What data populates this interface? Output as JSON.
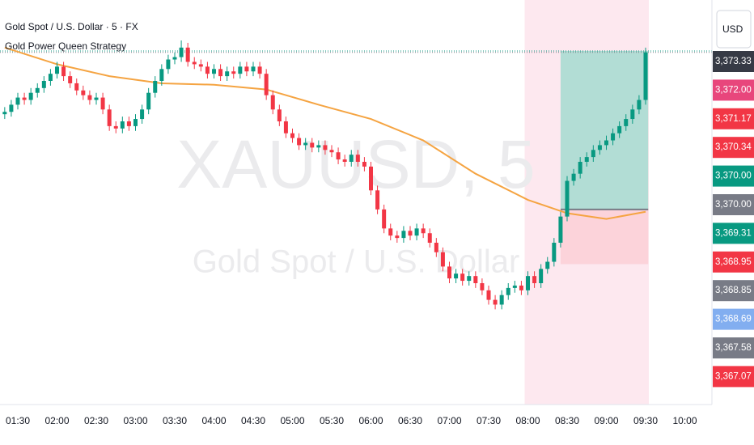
{
  "chart_data": {
    "type": "candlestick",
    "title": "Gold Spot / U.S. Dollar · 5 · FX",
    "subtitle": "Gold Power Queen Strategy",
    "watermark": "XAUUSD, 5",
    "watermark_subtitle": "Gold Spot / U.S. Dollar",
    "currency_button": "USD",
    "up_color": "#089981",
    "down_color": "#f23645",
    "ylim": [
      3365.9,
      3374.4
    ],
    "xticks": [
      "01:30",
      "02:00",
      "02:30",
      "03:00",
      "03:30",
      "04:00",
      "04:30",
      "05:00",
      "05:30",
      "06:00",
      "06:30",
      "07:00",
      "07:30",
      "08:00",
      "08:30",
      "09:00",
      "09:30",
      "10:00"
    ],
    "x": [
      "01:20",
      "01:25",
      "01:30",
      "01:35",
      "01:40",
      "01:45",
      "01:50",
      "01:55",
      "02:00",
      "02:05",
      "02:10",
      "02:15",
      "02:20",
      "02:25",
      "02:30",
      "02:35",
      "02:40",
      "02:45",
      "02:50",
      "02:55",
      "03:00",
      "03:05",
      "03:10",
      "03:15",
      "03:20",
      "03:25",
      "03:30",
      "03:35",
      "03:40",
      "03:45",
      "03:50",
      "03:55",
      "04:00",
      "04:05",
      "04:10",
      "04:15",
      "04:20",
      "04:25",
      "04:30",
      "04:35",
      "04:40",
      "04:45",
      "04:50",
      "04:55",
      "05:00",
      "05:05",
      "05:10",
      "05:15",
      "05:20",
      "05:25",
      "05:30",
      "05:35",
      "05:40",
      "05:45",
      "05:50",
      "05:55",
      "06:00",
      "06:05",
      "06:10",
      "06:15",
      "06:20",
      "06:25",
      "06:30",
      "06:35",
      "06:40",
      "06:45",
      "06:50",
      "06:55",
      "07:00",
      "07:05",
      "07:10",
      "07:15",
      "07:20",
      "07:25",
      "07:30",
      "07:35",
      "07:40",
      "07:45",
      "07:50",
      "07:55",
      "08:00",
      "08:05",
      "08:10",
      "08:15",
      "08:20",
      "08:25",
      "08:30",
      "08:35",
      "08:40",
      "08:45",
      "08:50",
      "08:55",
      "09:00",
      "09:05",
      "09:10",
      "09:15",
      "09:20",
      "09:25",
      "09:30"
    ],
    "open": [
      3372.0,
      3372.05,
      3372.2,
      3372.35,
      3372.3,
      3372.45,
      3372.55,
      3372.7,
      3372.85,
      3373.0,
      3372.8,
      3372.65,
      3372.5,
      3372.4,
      3372.3,
      3372.35,
      3372.1,
      3371.75,
      3371.7,
      3371.85,
      3371.75,
      3371.9,
      3372.1,
      3372.45,
      3372.7,
      3372.95,
      3373.15,
      3373.2,
      3373.4,
      3373.1,
      3373.05,
      3373.0,
      3372.85,
      3372.95,
      3372.8,
      3372.9,
      3372.85,
      3373.0,
      3372.9,
      3373.0,
      3372.85,
      3372.4,
      3372.1,
      3371.85,
      3371.6,
      3371.5,
      3371.35,
      3371.4,
      3371.3,
      3371.35,
      3371.25,
      3371.2,
      3371.05,
      3371.0,
      3371.15,
      3371.0,
      3370.9,
      3370.4,
      3370.0,
      3369.6,
      3369.45,
      3369.4,
      3369.55,
      3369.45,
      3369.6,
      3369.5,
      3369.3,
      3369.1,
      3368.8,
      3368.55,
      3368.65,
      3368.5,
      3368.6,
      3368.45,
      3368.3,
      3368.1,
      3368.0,
      3368.2,
      3368.35,
      3368.4,
      3368.3,
      3368.6,
      3368.45,
      3368.75,
      3368.9,
      3369.3,
      3369.85,
      3370.6,
      3370.75,
      3371.0,
      3371.1,
      3371.25,
      3371.35,
      3371.45,
      3371.6,
      3371.75,
      3371.9,
      3372.1,
      3372.3
    ],
    "high": [
      3372.15,
      3372.3,
      3372.45,
      3372.45,
      3372.55,
      3372.65,
      3372.8,
      3372.95,
      3373.1,
      3373.1,
      3372.9,
      3372.75,
      3372.6,
      3372.5,
      3372.45,
      3372.45,
      3372.2,
      3371.85,
      3371.95,
      3371.95,
      3372.0,
      3372.2,
      3372.55,
      3372.8,
      3373.05,
      3373.25,
      3373.3,
      3373.55,
      3373.5,
      3373.2,
      3373.15,
      3373.1,
      3373.05,
      3373.05,
      3373.0,
      3373.0,
      3373.1,
      3373.1,
      3373.1,
      3373.1,
      3372.95,
      3372.5,
      3372.2,
      3371.95,
      3371.7,
      3371.6,
      3371.5,
      3371.5,
      3371.45,
      3371.45,
      3371.35,
      3371.3,
      3371.15,
      3371.25,
      3371.25,
      3371.1,
      3371.0,
      3370.5,
      3370.1,
      3369.7,
      3369.55,
      3369.65,
      3369.65,
      3369.7,
      3369.7,
      3369.6,
      3369.4,
      3369.2,
      3368.9,
      3368.75,
      3368.75,
      3368.7,
      3368.7,
      3368.55,
      3368.4,
      3368.2,
      3368.3,
      3368.45,
      3368.5,
      3368.5,
      3368.7,
      3368.7,
      3368.85,
      3369.0,
      3369.4,
      3369.95,
      3370.7,
      3370.85,
      3371.1,
      3371.2,
      3371.35,
      3371.45,
      3371.55,
      3371.7,
      3371.85,
      3372.0,
      3372.2,
      3372.4,
      3373.4
    ],
    "low": [
      3371.9,
      3371.95,
      3372.1,
      3372.2,
      3372.2,
      3372.35,
      3372.45,
      3372.6,
      3372.75,
      3372.7,
      3372.55,
      3372.4,
      3372.3,
      3372.2,
      3372.2,
      3372.0,
      3371.65,
      3371.6,
      3371.6,
      3371.65,
      3371.65,
      3371.8,
      3372.0,
      3372.35,
      3372.6,
      3372.85,
      3373.05,
      3373.1,
      3373.0,
      3372.95,
      3372.9,
      3372.75,
      3372.75,
      3372.7,
      3372.7,
      3372.75,
      3372.75,
      3372.8,
      3372.8,
      3372.75,
      3372.3,
      3372.0,
      3371.75,
      3371.5,
      3371.4,
      3371.25,
      3371.25,
      3371.2,
      3371.2,
      3371.15,
      3371.1,
      3370.95,
      3370.9,
      3370.9,
      3370.9,
      3370.8,
      3370.3,
      3369.9,
      3369.5,
      3369.35,
      3369.3,
      3369.3,
      3369.35,
      3369.35,
      3369.4,
      3369.2,
      3369.0,
      3368.7,
      3368.45,
      3368.45,
      3368.4,
      3368.4,
      3368.35,
      3368.2,
      3368.0,
      3367.9,
      3367.9,
      3368.1,
      3368.25,
      3368.2,
      3368.2,
      3368.35,
      3368.35,
      3368.65,
      3368.8,
      3369.2,
      3369.75,
      3370.5,
      3370.65,
      3370.9,
      3371.0,
      3371.15,
      3371.25,
      3371.35,
      3371.5,
      3371.65,
      3371.8,
      3372.0,
      3372.2
    ],
    "close": [
      3372.05,
      3372.2,
      3372.35,
      3372.3,
      3372.45,
      3372.55,
      3372.7,
      3372.85,
      3373.0,
      3372.8,
      3372.65,
      3372.5,
      3372.4,
      3372.3,
      3372.35,
      3372.1,
      3371.75,
      3371.7,
      3371.85,
      3371.75,
      3371.9,
      3372.1,
      3372.45,
      3372.7,
      3372.95,
      3373.15,
      3373.2,
      3373.4,
      3373.1,
      3373.05,
      3373.0,
      3372.85,
      3372.95,
      3372.8,
      3372.9,
      3372.85,
      3373.0,
      3372.9,
      3373.0,
      3372.85,
      3372.4,
      3372.1,
      3371.85,
      3371.6,
      3371.5,
      3371.35,
      3371.4,
      3371.3,
      3371.35,
      3371.25,
      3371.2,
      3371.05,
      3371.0,
      3371.15,
      3371.0,
      3370.9,
      3370.4,
      3370.0,
      3369.6,
      3369.45,
      3369.4,
      3369.55,
      3369.45,
      3369.6,
      3369.5,
      3369.3,
      3369.1,
      3368.8,
      3368.55,
      3368.65,
      3368.5,
      3368.6,
      3368.45,
      3368.3,
      3368.1,
      3368.0,
      3368.2,
      3368.35,
      3368.4,
      3368.3,
      3368.6,
      3368.45,
      3368.75,
      3368.9,
      3369.3,
      3369.85,
      3370.6,
      3370.75,
      3371.0,
      3371.1,
      3371.25,
      3371.35,
      3371.45,
      3371.6,
      3371.75,
      3371.9,
      3372.1,
      3372.3,
      3373.3
    ],
    "ma": {
      "color": "#f5a442",
      "x": [
        "01:20",
        "02:00",
        "02:40",
        "03:20",
        "04:00",
        "04:40",
        "05:20",
        "06:00",
        "06:40",
        "07:20",
        "08:00",
        "08:30",
        "09:00",
        "09:30"
      ],
      "values": [
        3373.4,
        3373.05,
        3372.8,
        3372.65,
        3372.62,
        3372.52,
        3372.2,
        3371.9,
        3371.45,
        3370.75,
        3370.2,
        3369.92,
        3369.8,
        3369.95
      ]
    },
    "session": [
      "08:00",
      "09:30"
    ],
    "position": {
      "start": "08:25",
      "end": "09:32",
      "entry": 3370.0,
      "target": 3373.33,
      "stop": 3368.85
    },
    "price_labels": [
      {
        "value": 3373.33,
        "label": "3,373.33",
        "color": "#363a45"
      },
      {
        "value": 3372.0,
        "label": "3,372.00",
        "color": "#e8467c"
      },
      {
        "value": 3371.17,
        "label": "3,371.17",
        "color": "#f23645"
      },
      {
        "value": 3370.34,
        "label": "3,370.34",
        "color": "#f23645"
      },
      {
        "value": 3370.0,
        "label": "3,370.00",
        "color": "#089981"
      },
      {
        "value": 3370.0,
        "label": "3,370.00",
        "color": "#787b86"
      },
      {
        "value": 3369.31,
        "label": "3,369.31",
        "color": "#089981"
      },
      {
        "value": 3368.95,
        "label": "3,368.95",
        "color": "#f23645"
      },
      {
        "value": 3368.85,
        "label": "3,368.85",
        "color": "#787b86"
      },
      {
        "value": 3368.69,
        "label": "3,368.69",
        "color": "#82aef0"
      },
      {
        "value": 3367.58,
        "label": "3,367.58",
        "color": "#787b86"
      },
      {
        "value": 3367.07,
        "label": "3,367.07",
        "color": "#f23645"
      }
    ]
  }
}
